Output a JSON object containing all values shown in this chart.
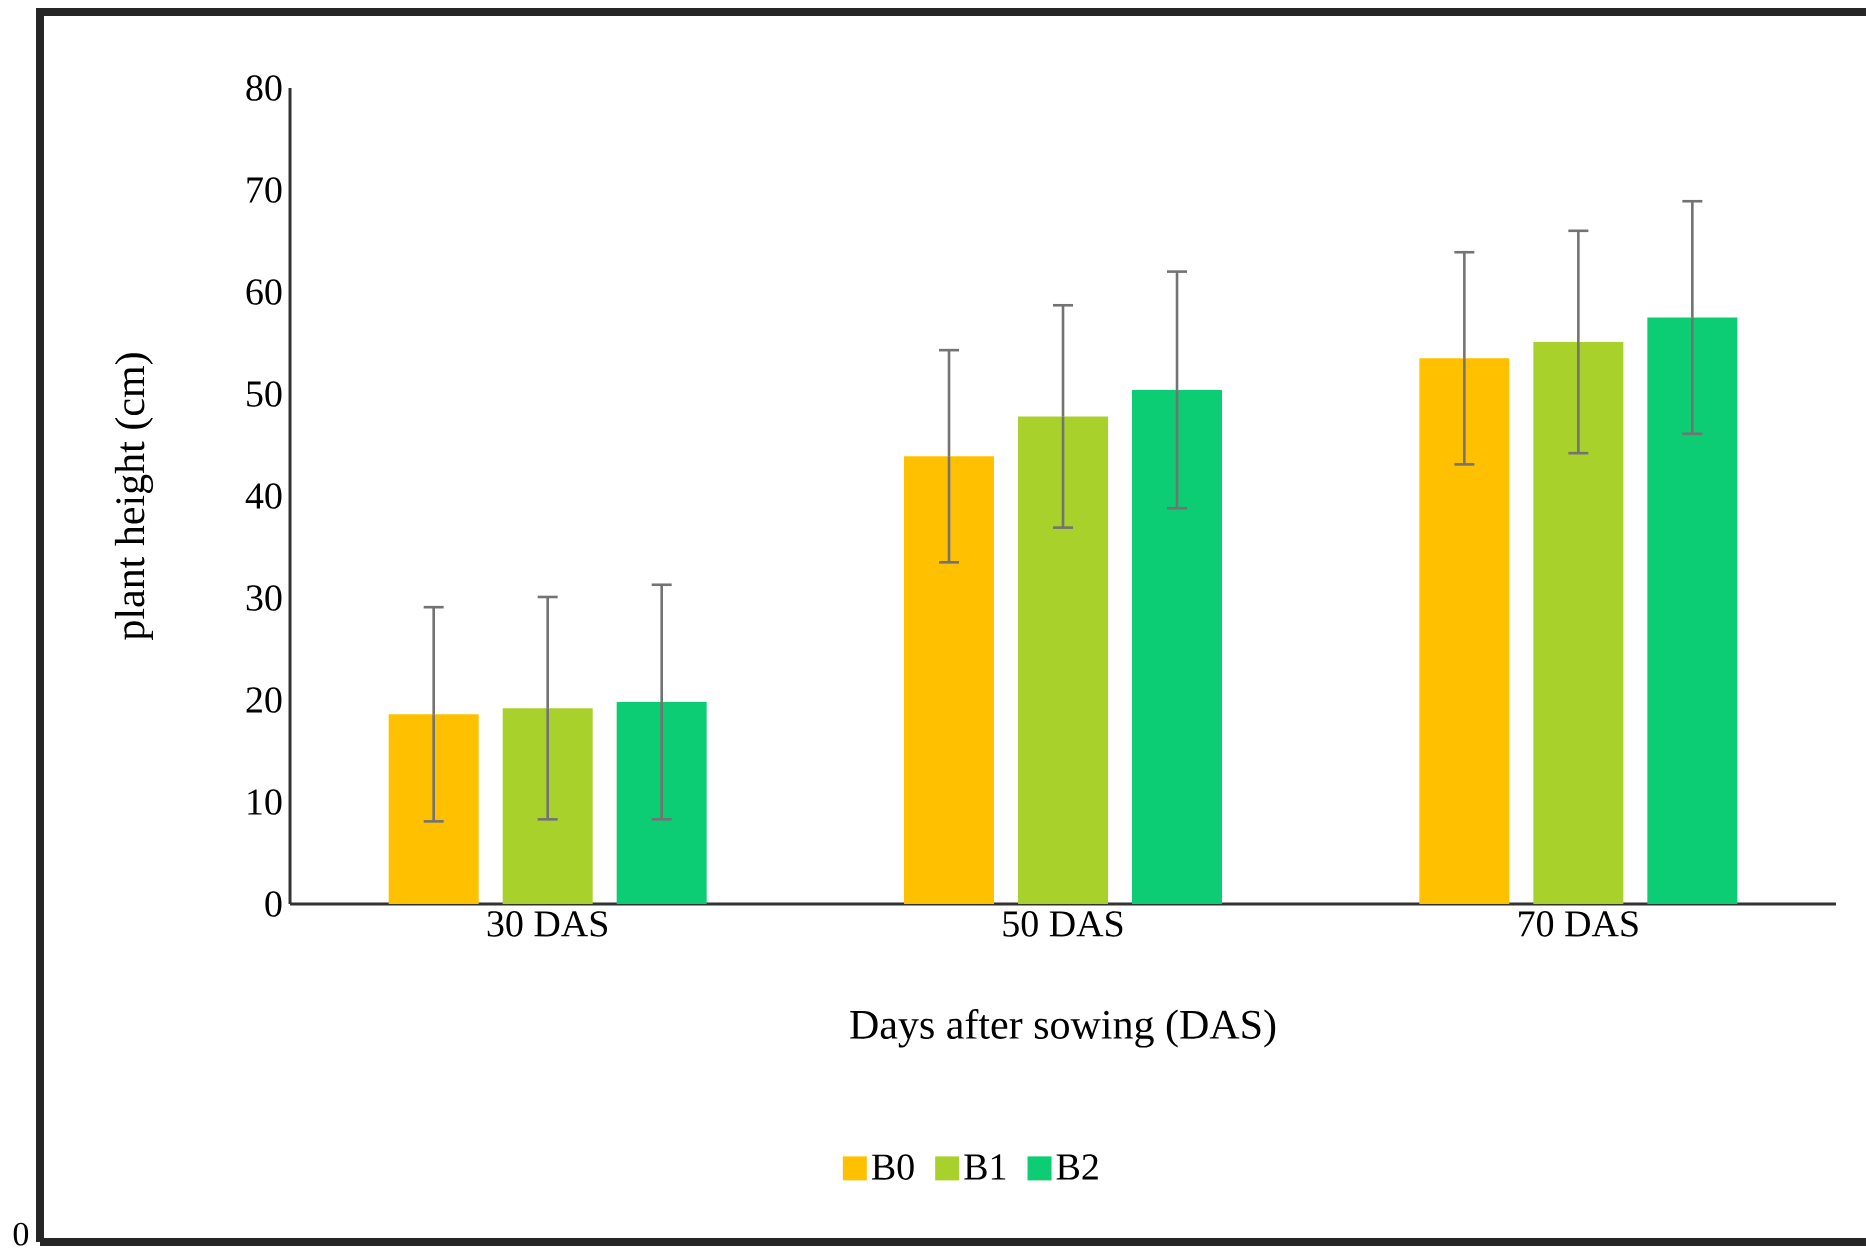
{
  "chart_data": {
    "type": "bar",
    "xlabel": "Days after sowing (DAS)",
    "ylabel": "plant height (cm)",
    "categories": [
      "30 DAS",
      "50 DAS",
      "70 DAS"
    ],
    "series": [
      {
        "name": "B0",
        "color": "#ffc000",
        "values": [
          18.6,
          43.9,
          53.5
        ],
        "errors": [
          10.5,
          10.4,
          10.4
        ]
      },
      {
        "name": "B1",
        "color": "#a9d12b",
        "values": [
          19.2,
          47.8,
          55.1
        ],
        "errors": [
          10.9,
          10.9,
          10.9
        ]
      },
      {
        "name": "B2",
        "color": "#0ccc74",
        "values": [
          19.8,
          50.4,
          57.5
        ],
        "errors": [
          11.5,
          11.6,
          11.4
        ]
      }
    ],
    "ylim": [
      0,
      80
    ],
    "yticks": [
      0,
      10,
      20,
      30,
      40,
      50,
      60,
      70,
      80
    ],
    "grid": false,
    "legend": "bottom",
    "annotations": [
      "0"
    ]
  }
}
